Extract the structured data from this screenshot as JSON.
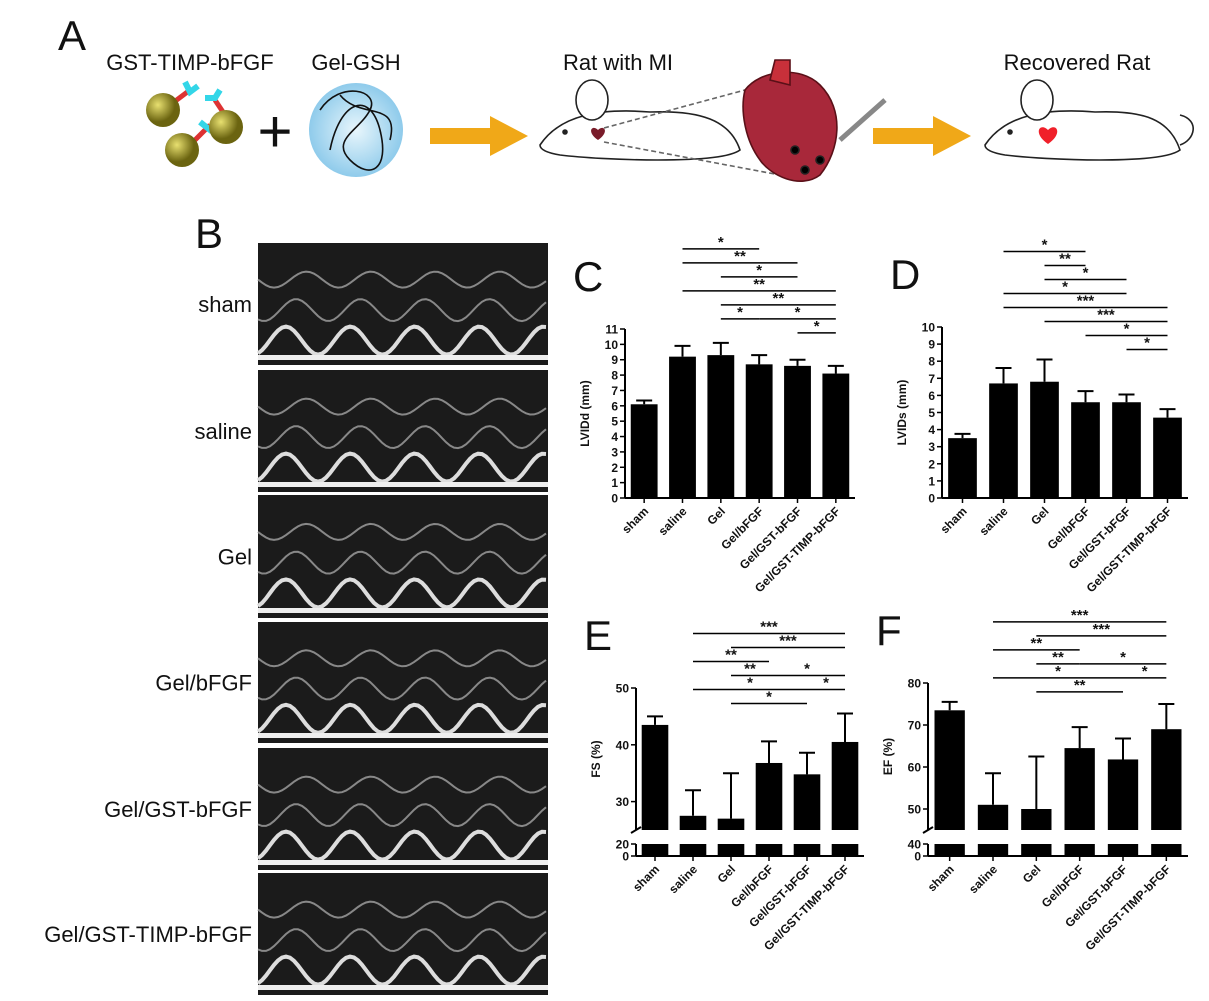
{
  "panel_a": {
    "letter": "A",
    "labels": [
      "GST-TIMP-bFGF",
      "Gel-GSH",
      "Rat with MI",
      "Recovered Rat"
    ],
    "plus": "+"
  },
  "panel_b": {
    "letter": "B",
    "rows": [
      "sham",
      "saline",
      "Gel",
      "Gel/bFGF",
      "Gel/GST-bFGF",
      "Gel/GST-TIMP-bFGF"
    ]
  },
  "chart_data": [
    {
      "type": "bar",
      "panel": "C",
      "ylabel": "LVIDd (mm)",
      "categories": [
        "sham",
        "saline",
        "Gel",
        "Gel/bFGF",
        "Gel/GST-bFGF",
        "Gel/GST-TIMP-bFGF"
      ],
      "values": [
        6.1,
        9.2,
        9.3,
        8.7,
        8.6,
        8.1
      ],
      "errors": [
        0.25,
        0.7,
        0.8,
        0.6,
        0.4,
        0.5
      ],
      "color": "#000000",
      "ylim": [
        0,
        11
      ],
      "yticks": [
        0,
        1,
        2,
        3,
        4,
        5,
        6,
        7,
        8,
        9,
        10,
        11
      ],
      "comparisons": [
        {
          "pair": [
            1,
            3
          ],
          "label": "*"
        },
        {
          "pair": [
            1,
            4
          ],
          "label": "**"
        },
        {
          "pair": [
            2,
            4
          ],
          "label": "*"
        },
        {
          "pair": [
            1,
            5
          ],
          "label": "**"
        },
        {
          "pair": [
            2,
            5
          ],
          "label": "**"
        },
        {
          "pair": [
            2,
            3
          ],
          "label": "*"
        },
        {
          "pair": [
            3,
            5
          ],
          "label": "*"
        },
        {
          "pair": [
            4,
            5
          ],
          "label": "*"
        }
      ]
    },
    {
      "type": "bar",
      "panel": "D",
      "ylabel": "LVIDs (mm)",
      "categories": [
        "sham",
        "saline",
        "Gel",
        "Gel/bFGF",
        "Gel/GST-bFGF",
        "Gel/GST-TIMP-bFGF"
      ],
      "values": [
        3.5,
        6.7,
        6.8,
        5.6,
        5.6,
        4.7
      ],
      "errors": [
        0.25,
        0.9,
        1.3,
        0.65,
        0.45,
        0.5
      ],
      "color": "#000000",
      "ylim": [
        0,
        10
      ],
      "yticks": [
        0,
        1,
        2,
        3,
        4,
        5,
        6,
        7,
        8,
        9,
        10
      ],
      "comparisons": [
        {
          "pair": [
            1,
            3
          ],
          "label": "*"
        },
        {
          "pair": [
            2,
            3
          ],
          "label": "**"
        },
        {
          "pair": [
            2,
            4
          ],
          "label": "*"
        },
        {
          "pair": [
            1,
            4
          ],
          "label": "*"
        },
        {
          "pair": [
            1,
            5
          ],
          "label": "***"
        },
        {
          "pair": [
            2,
            5
          ],
          "label": "***"
        },
        {
          "pair": [
            3,
            5
          ],
          "label": "*"
        },
        {
          "pair": [
            4,
            5
          ],
          "label": "*"
        }
      ]
    },
    {
      "type": "bar",
      "panel": "E",
      "ylabel": "FS (%)",
      "categories": [
        "sham",
        "saline",
        "Gel",
        "Gel/bFGF",
        "Gel/GST-bFGF",
        "Gel/GST-TIMP-bFGF"
      ],
      "values": [
        43.5,
        27.5,
        27,
        36.8,
        34.8,
        40.5
      ],
      "errors": [
        1.5,
        4.5,
        8,
        3.8,
        3.8,
        5
      ],
      "color": "#000000",
      "ylim": [
        0,
        50
      ],
      "axis_break": [
        20,
        25
      ],
      "yticks": [
        0,
        20,
        30,
        40,
        50
      ],
      "comparisons": [
        {
          "pair": [
            1,
            5
          ],
          "label": "***"
        },
        {
          "pair": [
            2,
            5
          ],
          "label": "***"
        },
        {
          "pair": [
            1,
            3
          ],
          "label": "**"
        },
        {
          "pair": [
            3,
            5
          ],
          "label": "*"
        },
        {
          "pair": [
            2,
            3
          ],
          "label": "**"
        },
        {
          "pair": [
            4,
            5
          ],
          "label": "*"
        },
        {
          "pair": [
            1,
            4
          ],
          "label": "*"
        },
        {
          "pair": [
            2,
            4
          ],
          "label": "*"
        }
      ]
    },
    {
      "type": "bar",
      "panel": "F",
      "ylabel": "EF (%)",
      "categories": [
        "sham",
        "saline",
        "Gel",
        "Gel/bFGF",
        "Gel/GST-bFGF",
        "Gel/GST-TIMP-bFGF"
      ],
      "values": [
        73.5,
        51,
        50,
        64.5,
        61.8,
        69
      ],
      "errors": [
        2,
        7.5,
        12.5,
        5,
        5,
        6
      ],
      "color": "#000000",
      "ylim": [
        0,
        80
      ],
      "axis_break": [
        40,
        45
      ],
      "yticks": [
        0,
        40,
        50,
        60,
        70,
        80
      ],
      "comparisons": [
        {
          "pair": [
            1,
            5
          ],
          "label": "***"
        },
        {
          "pair": [
            2,
            5
          ],
          "label": "***"
        },
        {
          "pair": [
            1,
            3
          ],
          "label": "**"
        },
        {
          "pair": [
            3,
            5
          ],
          "label": "*"
        },
        {
          "pair": [
            2,
            3
          ],
          "label": "**"
        },
        {
          "pair": [
            4,
            5
          ],
          "label": "*"
        },
        {
          "pair": [
            1,
            4
          ],
          "label": "*"
        },
        {
          "pair": [
            2,
            4
          ],
          "label": "**"
        }
      ]
    }
  ]
}
